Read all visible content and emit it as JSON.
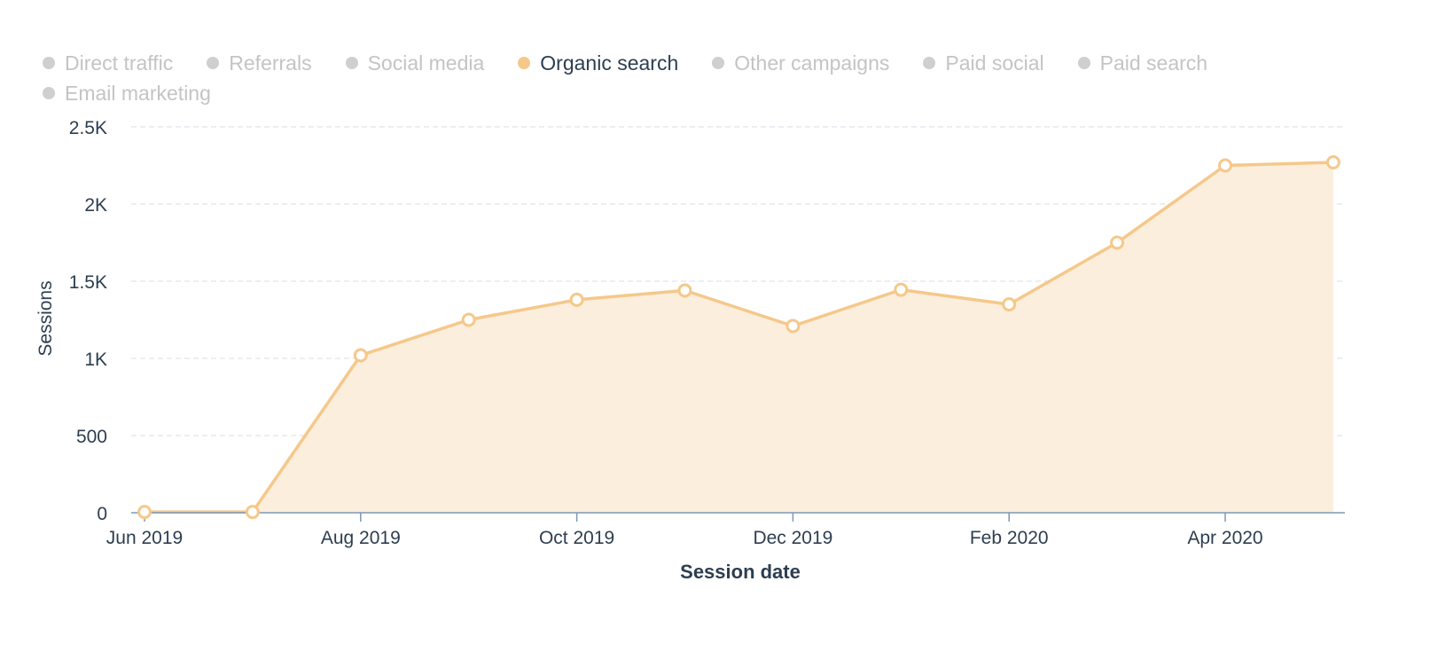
{
  "legend": [
    {
      "label": "Direct traffic",
      "active": false
    },
    {
      "label": "Referrals",
      "active": false
    },
    {
      "label": "Social media",
      "active": false
    },
    {
      "label": "Organic search",
      "active": true
    },
    {
      "label": "Other campaigns",
      "active": false
    },
    {
      "label": "Paid social",
      "active": false
    },
    {
      "label": "Paid search",
      "active": false
    },
    {
      "label": "Email marketing",
      "active": false
    }
  ],
  "colors": {
    "series_line": "#f5c88a",
    "series_fill": "#fbeedd",
    "inactive_dot": "#cfcfcf",
    "inactive_text": "#c4c4c4",
    "active_text": "#2d3e50",
    "axis_text": "#2d3e50",
    "grid": "#dfe3eb",
    "axis_line": "#7c98b6"
  },
  "chart_data": {
    "type": "area",
    "xlabel": "Session date",
    "ylabel": "Sessions",
    "ylim": [
      0,
      2500
    ],
    "y_ticks": [
      {
        "value": 0,
        "label": "0"
      },
      {
        "value": 500,
        "label": "500"
      },
      {
        "value": 1000,
        "label": "1K"
      },
      {
        "value": 1500,
        "label": "1.5K"
      },
      {
        "value": 2000,
        "label": "2K"
      },
      {
        "value": 2500,
        "label": "2.5K"
      }
    ],
    "x": [
      "2019-06",
      "2019-07",
      "2019-08",
      "2019-09",
      "2019-10",
      "2019-11",
      "2019-12",
      "2020-01",
      "2020-02",
      "2020-03",
      "2020-04",
      "2020-05"
    ],
    "x_tick_labels": [
      {
        "index": 0,
        "label": "Jun 2019"
      },
      {
        "index": 2,
        "label": "Aug 2019"
      },
      {
        "index": 4,
        "label": "Oct 2019"
      },
      {
        "index": 6,
        "label": "Dec 2019"
      },
      {
        "index": 8,
        "label": "Feb 2020"
      },
      {
        "index": 10,
        "label": "Apr 2020"
      }
    ],
    "series": [
      {
        "name": "Organic search",
        "values": [
          5,
          5,
          1020,
          1250,
          1380,
          1440,
          1210,
          1445,
          1350,
          1750,
          2250,
          2270
        ]
      }
    ],
    "grid": true,
    "legend_position": "top-left"
  }
}
